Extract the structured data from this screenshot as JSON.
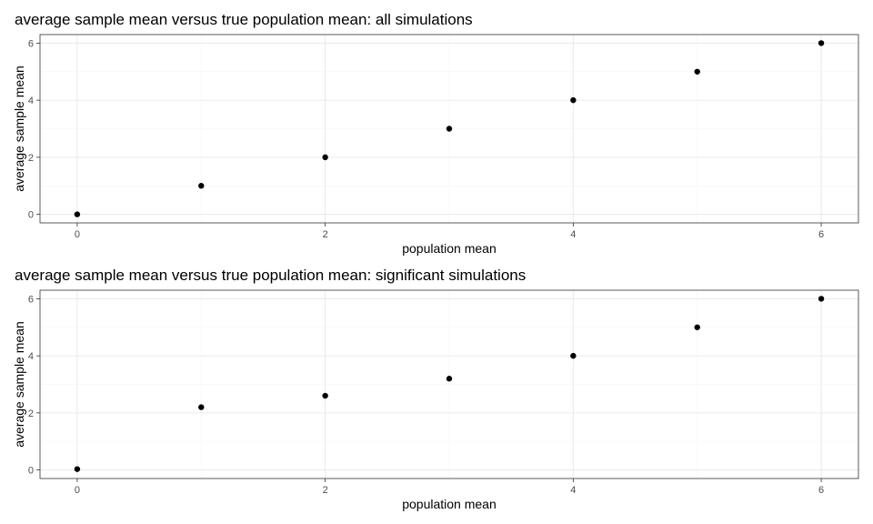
{
  "chart_data": [
    {
      "type": "scatter",
      "title": "average sample mean versus true population mean: all simulations",
      "xlabel": "population mean",
      "ylabel": "average sample mean",
      "xlim": [
        -0.3,
        6.3
      ],
      "ylim": [
        -0.3,
        6.3
      ],
      "xticks": [
        0,
        2,
        4,
        6
      ],
      "yticks": [
        0,
        2,
        4,
        6
      ],
      "grid": true,
      "point_color": "#000000",
      "x": [
        0,
        1,
        2,
        3,
        4,
        5,
        6
      ],
      "y": [
        0.0,
        1.0,
        2.0,
        3.0,
        4.0,
        5.0,
        6.0
      ]
    },
    {
      "type": "scatter",
      "title": "average sample mean versus true population mean: significant simulations",
      "xlabel": "population mean",
      "ylabel": "average sample mean",
      "xlim": [
        -0.3,
        6.3
      ],
      "ylim": [
        -0.3,
        6.3
      ],
      "xticks": [
        0,
        2,
        4,
        6
      ],
      "yticks": [
        0,
        2,
        4,
        6
      ],
      "grid": true,
      "point_color": "#000000",
      "x": [
        0,
        1,
        2,
        3,
        4,
        5,
        6
      ],
      "y": [
        0.03,
        2.2,
        2.6,
        3.2,
        4.0,
        5.0,
        6.0
      ]
    }
  ]
}
